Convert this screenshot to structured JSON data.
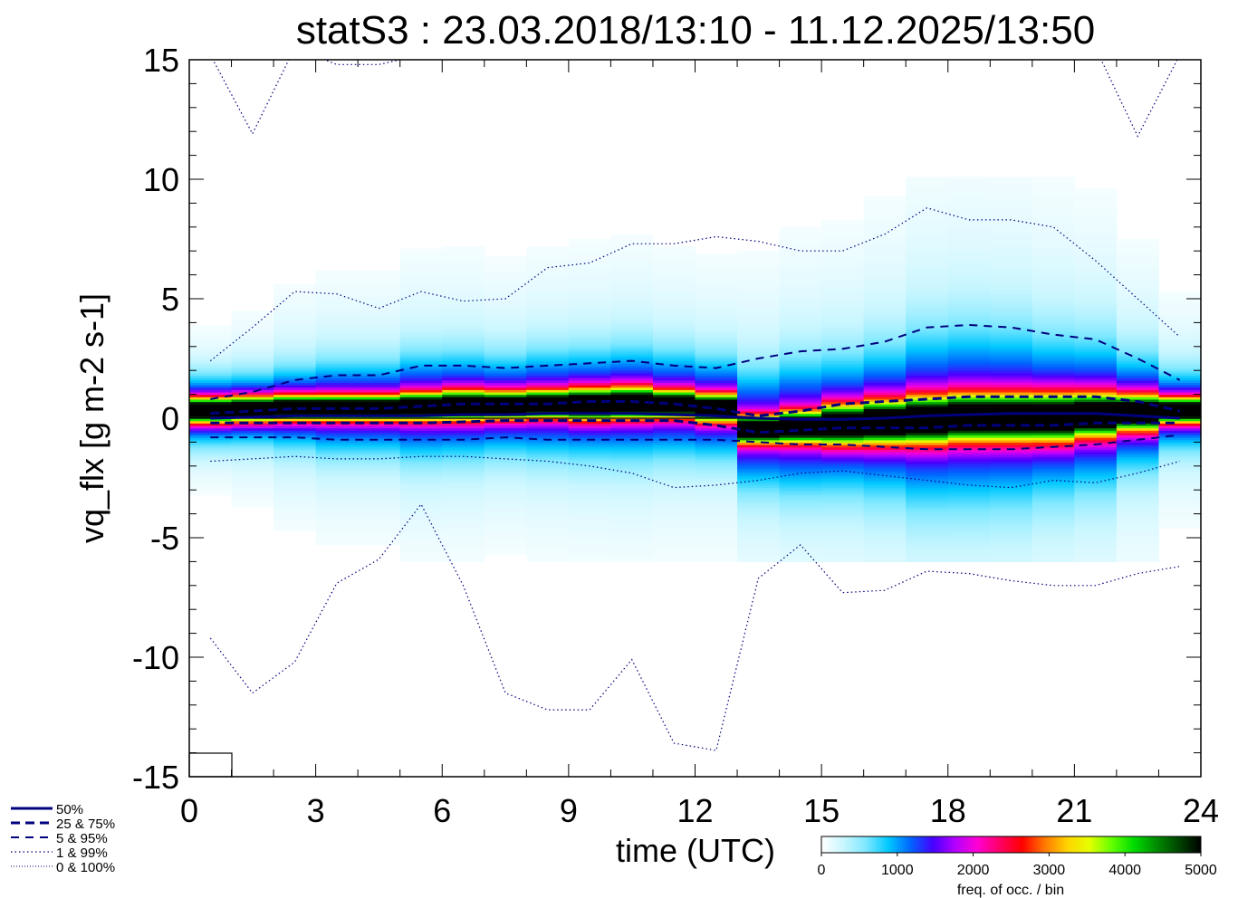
{
  "chart_data": {
    "type": "heatmap",
    "title": "statS3 : 23.03.2018/13:10 - 11.12.2025/13:50",
    "xlabel": "time (UTC)",
    "ylabel": "vq_flx [g m-2 s-1]",
    "xlim": [
      0,
      24
    ],
    "ylim": [
      -15,
      15
    ],
    "xticks": [
      0,
      3,
      6,
      9,
      12,
      15,
      18,
      21,
      24
    ],
    "xtick_labels": [
      "0",
      "3",
      "6",
      "9",
      "12",
      "15",
      "18",
      "21",
      "24"
    ],
    "yticks": [
      15,
      10,
      5,
      0,
      -5,
      -10,
      -15
    ],
    "ytick_labels": [
      "15",
      "10",
      "5",
      "0",
      "-5",
      "-10",
      "-15"
    ],
    "x": [
      0.5,
      1.5,
      2.5,
      3.5,
      4.5,
      5.5,
      6.5,
      7.5,
      8.5,
      9.5,
      10.5,
      11.5,
      12.5,
      13.5,
      14.5,
      15.5,
      16.5,
      17.5,
      18.5,
      19.5,
      20.5,
      21.5,
      22.5,
      23.5
    ],
    "series": [
      {
        "name": "0 & 100% (upper)",
        "style": "dotted",
        "values": [
          15.2,
          11.9,
          15.5,
          14.8,
          14.8,
          15.2,
          15.5,
          15.5,
          15.5,
          15.5,
          15.5,
          15.5,
          15.5,
          15.5,
          15.5,
          15.5,
          15.5,
          15.5,
          15.5,
          15.5,
          15.5,
          15.5,
          11.8,
          15.2
        ]
      },
      {
        "name": "1 & 99% (upper)",
        "style": "dotted",
        "values": [
          2.4,
          3.8,
          5.3,
          5.2,
          4.6,
          5.3,
          4.9,
          5.0,
          6.3,
          6.5,
          7.3,
          7.3,
          7.6,
          7.4,
          7.0,
          7.0,
          7.7,
          8.8,
          8.3,
          8.3,
          8.0,
          6.6,
          5.0,
          3.4
        ]
      },
      {
        "name": "5 & 95% (upper)",
        "style": "dashed",
        "values": [
          0.8,
          1.1,
          1.6,
          1.8,
          1.8,
          2.2,
          2.2,
          2.1,
          2.2,
          2.3,
          2.4,
          2.2,
          2.1,
          2.5,
          2.8,
          2.9,
          3.2,
          3.8,
          3.9,
          3.8,
          3.5,
          3.3,
          2.5,
          1.6
        ]
      },
      {
        "name": "25 & 75% (upper)",
        "style": "dashed-bold",
        "values": [
          0.2,
          0.3,
          0.4,
          0.4,
          0.4,
          0.5,
          0.6,
          0.6,
          0.6,
          0.7,
          0.7,
          0.6,
          0.4,
          0.1,
          0.3,
          0.6,
          0.7,
          0.8,
          0.9,
          0.9,
          0.9,
          0.9,
          0.7,
          0.3
        ]
      },
      {
        "name": "50%",
        "style": "solid",
        "values": [
          0.0,
          0.05,
          0.1,
          0.1,
          0.1,
          0.1,
          0.15,
          0.15,
          0.2,
          0.2,
          0.2,
          0.15,
          0.1,
          0.0,
          -0.05,
          -0.05,
          0.0,
          0.1,
          0.15,
          0.2,
          0.2,
          0.2,
          0.1,
          0.0
        ]
      },
      {
        "name": "25 & 75% (lower)",
        "style": "dashed-bold",
        "values": [
          -0.2,
          -0.2,
          -0.2,
          -0.2,
          -0.2,
          -0.2,
          -0.15,
          -0.1,
          -0.1,
          -0.1,
          -0.1,
          -0.1,
          -0.3,
          -0.6,
          -0.5,
          -0.4,
          -0.4,
          -0.4,
          -0.3,
          -0.3,
          -0.3,
          -0.2,
          -0.2,
          -0.2
        ]
      },
      {
        "name": "5 & 95% (lower)",
        "style": "dashed",
        "values": [
          -0.8,
          -0.8,
          -0.8,
          -0.9,
          -0.9,
          -0.9,
          -0.9,
          -0.8,
          -0.9,
          -0.9,
          -0.9,
          -0.9,
          -0.9,
          -1.0,
          -1.1,
          -1.1,
          -1.2,
          -1.3,
          -1.3,
          -1.3,
          -1.2,
          -1.1,
          -0.9,
          -0.7
        ]
      },
      {
        "name": "1 & 99% (lower)",
        "style": "dotted",
        "values": [
          -1.8,
          -1.7,
          -1.6,
          -1.7,
          -1.7,
          -1.6,
          -1.6,
          -1.7,
          -1.8,
          -2.0,
          -2.3,
          -2.9,
          -2.8,
          -2.6,
          -2.3,
          -2.2,
          -2.4,
          -2.6,
          -2.8,
          -2.9,
          -2.6,
          -2.7,
          -2.3,
          -1.8
        ]
      },
      {
        "name": "0 & 100% (lower)",
        "style": "dotted",
        "values": [
          -9.2,
          -11.5,
          -10.2,
          -6.9,
          -5.9,
          -3.6,
          -7.0,
          -11.5,
          -12.2,
          -12.2,
          -10.1,
          -13.6,
          -13.9,
          -6.7,
          -5.3,
          -7.3,
          -7.2,
          -6.4,
          -6.5,
          -6.8,
          -7.0,
          -7.0,
          -6.5,
          -6.2
        ]
      }
    ],
    "density_core": {
      "peak_center": [
        0.3,
        0.35,
        0.4,
        0.4,
        0.4,
        0.45,
        0.5,
        0.5,
        0.55,
        0.55,
        0.6,
        0.55,
        0.4,
        -0.5,
        -0.4,
        -0.3,
        -0.2,
        -0.1,
        0.0,
        0.0,
        0.0,
        0.1,
        0.2,
        0.3
      ]
    },
    "legend": {
      "position": "bottom-left",
      "entries": [
        "50%",
        "25 &  75%",
        "5 &  95%",
        "1 &  99%",
        "0 & 100%"
      ],
      "color": "#00007f"
    },
    "colorbar": {
      "label": "freq. of occ. / bin",
      "range": [
        0,
        5000
      ],
      "ticks": [
        "0",
        "1000",
        "2000",
        "3000",
        "4000",
        "5000"
      ],
      "colors": [
        "#ffffff",
        "#c8f6ff",
        "#7ee8ff",
        "#00c8ff",
        "#0064ff",
        "#4600ff",
        "#b400ff",
        "#ff00d2",
        "#ff0064",
        "#ff0000",
        "#ff7800",
        "#ffd200",
        "#e6ff00",
        "#64ff00",
        "#00dc00",
        "#008c00",
        "#004600",
        "#000000"
      ]
    },
    "colors": {
      "quantile_lines": "#00007f",
      "axes": "#000000",
      "zero_line": "#000000"
    },
    "grid": false
  }
}
